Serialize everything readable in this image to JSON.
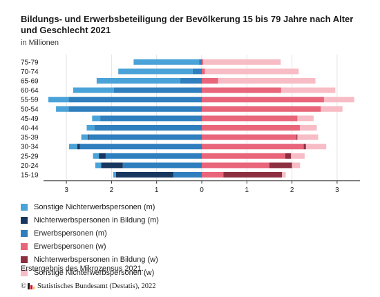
{
  "header": {
    "title": "Bildungs- und Erwerbsbeteiligung der Bevölkerung 15 bis 79 Jahre nach Alter und Geschlecht 2021",
    "subtitle": "in Millionen"
  },
  "chart_data": {
    "type": "bar",
    "orientation": "horizontal-population-pyramid",
    "categories": [
      "75-79",
      "70-74",
      "65-69",
      "60-64",
      "55-59",
      "50-54",
      "45-49",
      "40-44",
      "35-39",
      "30-34",
      "25-29",
      "20-24",
      "15-19"
    ],
    "xlim": [
      -3.5,
      3.5
    ],
    "x_ticks": [
      -3,
      -2,
      -1,
      0,
      1,
      2,
      3
    ],
    "x_tick_labels": [
      "3",
      "2",
      "1",
      "0",
      "1",
      "2",
      "3"
    ],
    "grid": true,
    "legend_position": "bottom",
    "series": [
      {
        "name": "Sonstige Nichterwerbspersonen (m)",
        "side": "left",
        "color": "#4aa3d8",
        "values": [
          1.45,
          1.65,
          1.85,
          0.9,
          0.45,
          0.28,
          0.18,
          0.17,
          0.15,
          0.18,
          0.13,
          0.13,
          0.06
        ]
      },
      {
        "name": "Nichterwerbspersonen in Bildung (m)",
        "side": "left",
        "color": "#17375e",
        "values": [
          0,
          0,
          0,
          0,
          0,
          0,
          0,
          0,
          0.02,
          0.06,
          0.15,
          0.48,
          1.27
        ]
      },
      {
        "name": "Erwerbspersonen (m)",
        "side": "left",
        "color": "#2f7fbf",
        "values": [
          0.06,
          0.2,
          0.48,
          1.95,
          2.95,
          2.95,
          2.25,
          2.38,
          2.5,
          2.7,
          2.13,
          1.75,
          0.63
        ]
      },
      {
        "name": "Erwerbspersonen (w)",
        "side": "right",
        "color": "#e8657a",
        "values": [
          0.03,
          0.07,
          0.36,
          1.76,
          2.71,
          2.64,
          2.12,
          2.16,
          2.1,
          2.26,
          1.85,
          1.5,
          0.48
        ]
      },
      {
        "name": "Nichterwerbspersonen in Bildung (w)",
        "side": "right",
        "color": "#8e2f41",
        "values": [
          0,
          0,
          0,
          0,
          0,
          0,
          0,
          0.01,
          0.02,
          0.05,
          0.13,
          0.5,
          1.3
        ]
      },
      {
        "name": "Sonstige Nichterwerbspersonen (w)",
        "side": "right",
        "color": "#f7bcc5",
        "values": [
          1.72,
          2.08,
          2.16,
          1.2,
          0.67,
          0.48,
          0.36,
          0.38,
          0.46,
          0.45,
          0.3,
          0.18,
          0.08
        ]
      }
    ]
  },
  "legend_order": [
    0,
    1,
    2,
    3,
    4,
    5
  ],
  "footer": {
    "note": "Erstergebnis des Mikrozensus 2021.",
    "copyright": "©",
    "source": "Statistisches Bundesamt (Destatis), 2022"
  }
}
